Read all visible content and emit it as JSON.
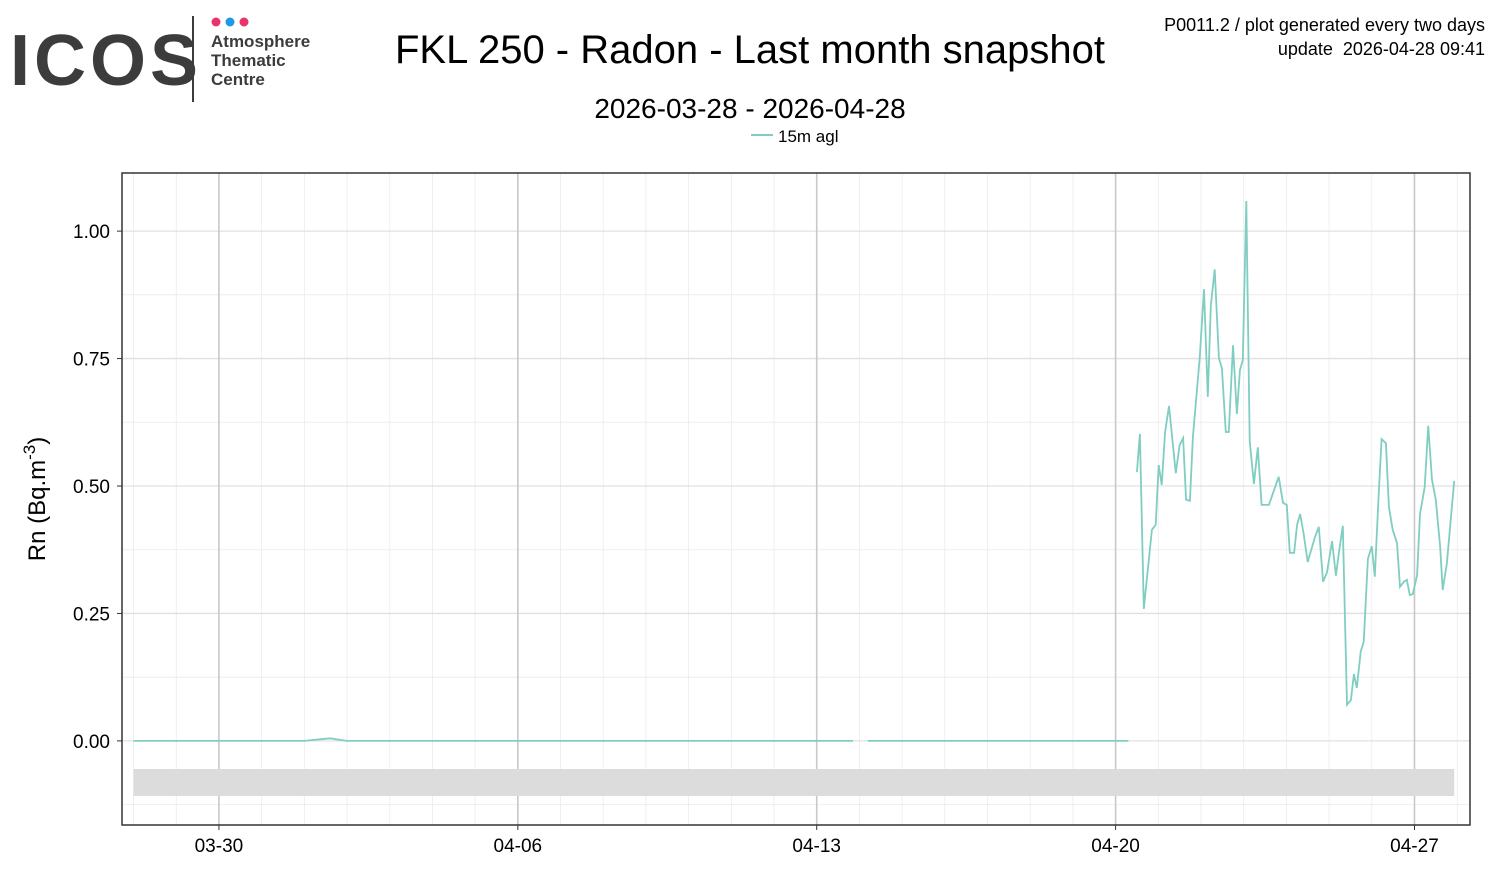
{
  "header": {
    "logo": "ICOS",
    "logo_sub": [
      "Atmosphere",
      "Thematic",
      "Centre"
    ],
    "notice": "P0011.2 / plot generated every two days",
    "update": "update  2026-04-28 09:41"
  },
  "chart_data": {
    "type": "line",
    "title": "FKL 250 - Radon - Last month snapshot",
    "subtitle": "2026-03-28 - 2026-04-28",
    "ylabel": {
      "text": "Rn (Bq.m",
      "sup": "-3",
      "close": ")"
    },
    "xlim": [
      -0.27,
      31.3
    ],
    "xticks": [
      {
        "value": 2,
        "label": "03-30"
      },
      {
        "value": 9,
        "label": "04-06"
      },
      {
        "value": 16,
        "label": "04-13"
      },
      {
        "value": 23,
        "label": "04-20"
      },
      {
        "value": 30,
        "label": "04-27"
      }
    ],
    "ylim": [
      -0.165,
      1.114
    ],
    "yticks": [
      {
        "value": 0,
        "label": "0.00"
      },
      {
        "value": 0.25,
        "label": "0.25"
      },
      {
        "value": 0.5,
        "label": "0.50"
      },
      {
        "value": 0.75,
        "label": "0.75"
      },
      {
        "value": 1,
        "label": "1.00"
      }
    ],
    "grid": true,
    "legend": "top",
    "x": [
      0,
      1,
      2,
      3,
      4,
      4.6,
      5,
      6,
      7,
      8,
      9,
      10,
      11,
      12,
      13,
      14,
      15,
      16,
      16.85,
      17.0,
      17.2,
      18,
      19,
      20,
      21,
      22,
      23,
      23.3,
      23.4,
      23.5,
      23.57,
      23.66,
      23.85,
      23.94,
      24.01,
      24.08,
      24.16,
      24.25,
      24.41,
      24.5,
      24.58,
      24.65,
      24.74,
      24.81,
      24.97,
      25.07,
      25.16,
      25.23,
      25.32,
      25.42,
      25.49,
      25.58,
      25.65,
      25.75,
      25.84,
      25.91,
      25.98,
      26.06,
      26.14,
      26.24,
      26.33,
      26.42,
      26.59,
      26.82,
      26.92,
      27.01,
      27.08,
      27.18,
      27.25,
      27.32,
      27.4,
      27.5,
      27.67,
      27.76,
      27.86,
      27.95,
      28.07,
      28.16,
      28.23,
      28.32,
      28.42,
      28.51,
      28.58,
      28.65,
      28.74,
      28.81,
      28.91,
      29.0,
      29.07,
      29.16,
      29.23,
      29.33,
      29.4,
      29.49,
      29.59,
      29.66,
      29.75,
      29.82,
      29.89,
      29.96,
      30.06,
      30.13,
      30.24,
      30.32,
      30.41,
      30.5,
      30.6,
      30.66,
      30.76,
      30.93
    ],
    "series": [
      {
        "name": "15m agl",
        "color": "#80cdc1",
        "values": [
          0,
          0,
          0,
          0,
          0,
          0.005,
          0,
          0,
          0,
          0,
          0,
          0,
          0,
          0,
          0,
          0,
          0,
          0,
          0,
          null,
          0,
          0,
          0,
          0,
          0,
          0,
          0,
          0,
          null,
          0.527,
          0.602,
          0.259,
          0.414,
          0.424,
          0.541,
          0.502,
          0.606,
          0.657,
          0.525,
          0.58,
          0.594,
          0.473,
          0.471,
          0.596,
          0.751,
          0.886,
          0.675,
          0.853,
          0.925,
          0.751,
          0.731,
          0.606,
          0.606,
          0.776,
          0.641,
          0.727,
          0.747,
          1.059,
          0.588,
          0.504,
          0.576,
          0.463,
          0.463,
          0.518,
          0.467,
          0.463,
          0.369,
          0.369,
          0.424,
          0.445,
          0.408,
          0.351,
          0.4,
          0.42,
          0.312,
          0.331,
          0.392,
          0.324,
          0.369,
          0.422,
          0.071,
          0.08,
          0.131,
          0.104,
          0.175,
          0.194,
          0.357,
          0.382,
          0.322,
          0.48,
          0.592,
          0.584,
          0.459,
          0.414,
          0.388,
          0.302,
          0.312,
          0.316,
          0.286,
          0.288,
          0.325,
          0.445,
          0.498,
          0.618,
          0.512,
          0.473,
          0.382,
          0.296,
          0.349,
          0.51
        ]
      }
    ]
  }
}
